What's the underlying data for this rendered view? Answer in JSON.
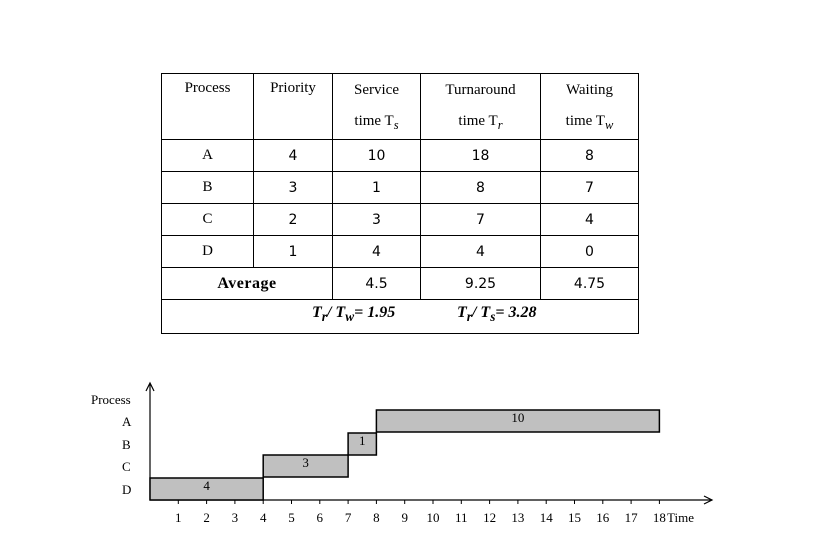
{
  "table": {
    "headers": [
      {
        "line1": "Process",
        "line2": ""
      },
      {
        "line1": "Priority",
        "line2": ""
      },
      {
        "line1": "Service",
        "line2": "time T",
        "sub": "s"
      },
      {
        "line1": "Turnaround",
        "line2": "time T",
        "sub": "r"
      },
      {
        "line1": "Waiting",
        "line2": "time T",
        "sub": "w"
      }
    ],
    "rows": [
      {
        "process": "A",
        "priority": "4",
        "service": "10",
        "turnaround": "18",
        "waiting": "8"
      },
      {
        "process": "B",
        "priority": "3",
        "service": "1",
        "turnaround": "8",
        "waiting": "7"
      },
      {
        "process": "C",
        "priority": "2",
        "service": "3",
        "turnaround": "7",
        "waiting": "4"
      },
      {
        "process": "D",
        "priority": "1",
        "service": "4",
        "turnaround": "4",
        "waiting": "0"
      }
    ],
    "average": {
      "label": "Average",
      "service": "4.5",
      "turnaround": "9.25",
      "waiting": "4.75"
    },
    "ratios": {
      "r1": {
        "a": "T",
        "a_sub": "r",
        "b": "/ T",
        "b_sub": "w",
        "value": "= 1.95"
      },
      "r2": {
        "a": "T",
        "a_sub": "r",
        "b": "/ T",
        "b_sub": "s",
        "value": "= 3.28"
      }
    }
  },
  "gantt": {
    "y_axis_label": "Process",
    "x_axis_label": "Time",
    "process_labels": [
      "A",
      "B",
      "C",
      "D"
    ],
    "ticks": [
      "1",
      "2",
      "3",
      "4",
      "5",
      "6",
      "7",
      "8",
      "9",
      "10",
      "11",
      "12",
      "13",
      "14",
      "15",
      "16",
      "17",
      "18"
    ],
    "bars": [
      {
        "process": "D",
        "start": 0,
        "end": 4,
        "label": "4"
      },
      {
        "process": "C",
        "start": 4,
        "end": 7,
        "label": "3"
      },
      {
        "process": "B",
        "start": 7,
        "end": 8,
        "label": "1"
      },
      {
        "process": "A",
        "start": 8,
        "end": 18,
        "label": "10"
      }
    ],
    "bar_color": "#c0c0c0"
  }
}
